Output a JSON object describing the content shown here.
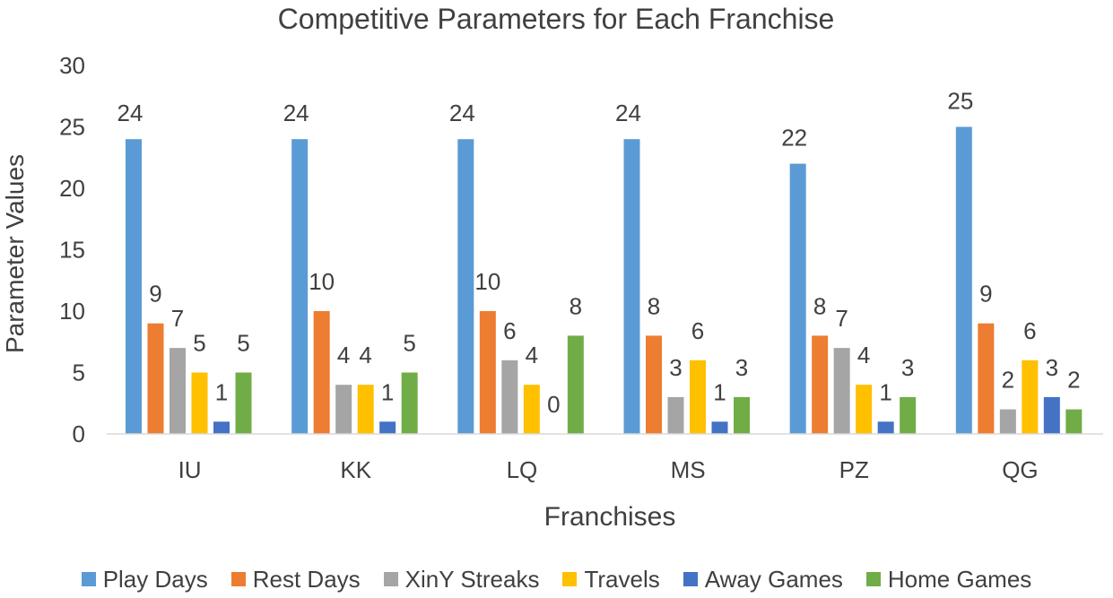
{
  "chart_data": {
    "type": "bar",
    "title": "Competitive Parameters for Each Franchise",
    "xlabel": "Franchises",
    "ylabel": "Parameter Values",
    "ylim": [
      0,
      30
    ],
    "yticks": [
      0,
      5,
      10,
      15,
      20,
      25,
      30
    ],
    "ytick_labels": [
      "0",
      "5",
      "10",
      "15",
      "20",
      "25",
      "30"
    ],
    "grid": false,
    "legend_position": "bottom",
    "categories": [
      "IU",
      "KK",
      "LQ",
      "MS",
      "PZ",
      "QG"
    ],
    "series": [
      {
        "name": "Play Days",
        "color": "#5B9BD5",
        "values": [
          24,
          24,
          24,
          24,
          22,
          25
        ]
      },
      {
        "name": "Rest Days",
        "color": "#ED7D31",
        "values": [
          9,
          10,
          10,
          8,
          8,
          9
        ]
      },
      {
        "name": "XinY Streaks",
        "color": "#A5A5A5",
        "values": [
          7,
          4,
          6,
          3,
          7,
          2
        ]
      },
      {
        "name": "Travels",
        "color": "#FFC000",
        "values": [
          5,
          4,
          4,
          6,
          4,
          6
        ]
      },
      {
        "name": "Away Games",
        "color": "#4472C4",
        "values": [
          1,
          1,
          0,
          1,
          1,
          3
        ]
      },
      {
        "name": "Home Games",
        "color": "#70AD47",
        "values": [
          5,
          5,
          8,
          3,
          3,
          2
        ]
      }
    ]
  }
}
